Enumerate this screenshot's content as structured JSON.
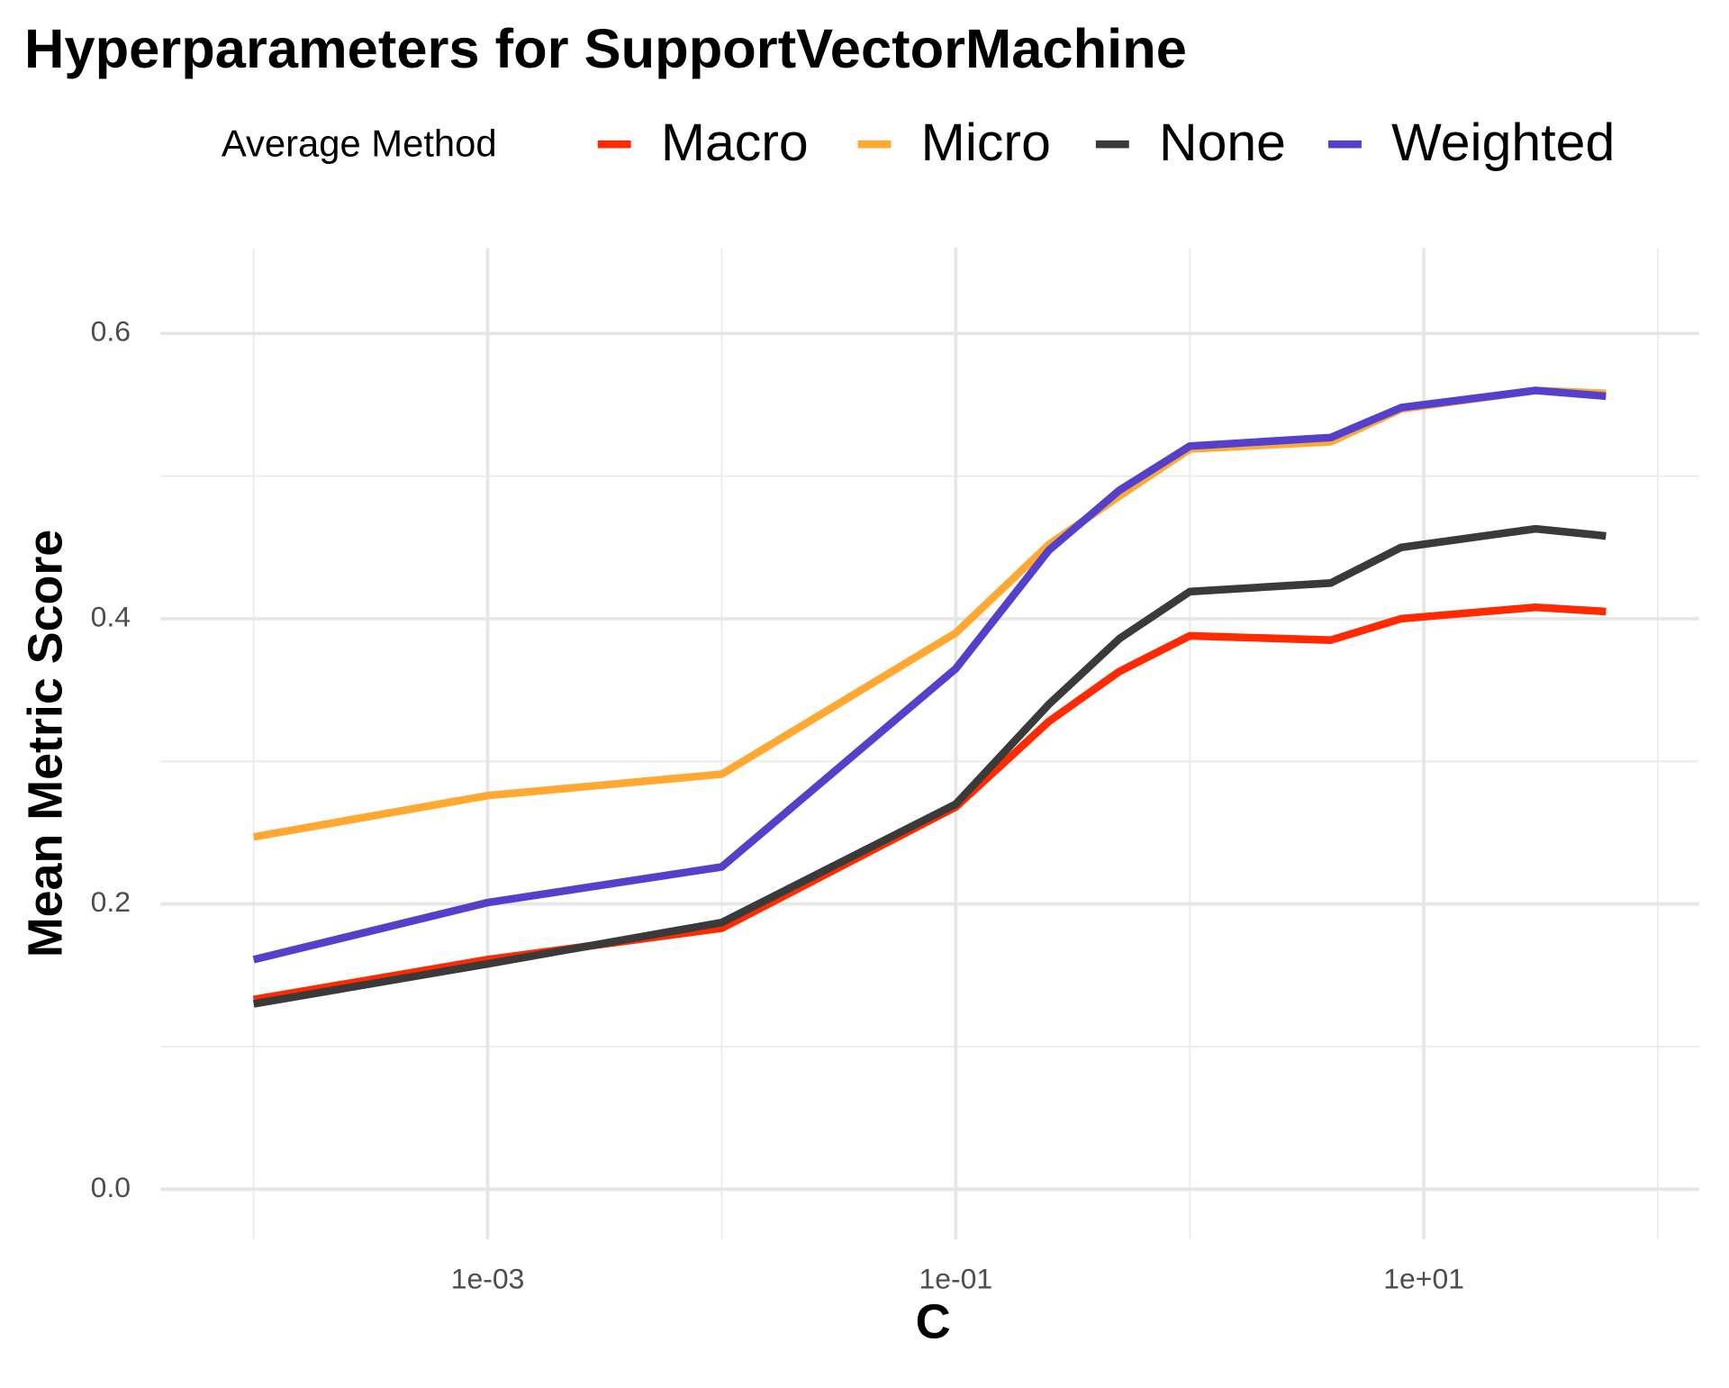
{
  "chart_data": {
    "type": "line",
    "title": "Hyperparameters for SupportVectorMachine",
    "x_label": "C",
    "y_label": "Mean Metric Score",
    "legend_title": "Average Method",
    "legend_position": "top",
    "x_scale": "log",
    "x": [
      0.0001,
      0.001,
      0.01,
      0.1,
      0.25,
      0.5,
      1,
      4,
      8,
      30,
      60
    ],
    "series": [
      {
        "name": "Macro",
        "color": "#ff2a00",
        "values": [
          0.133,
          0.161,
          0.183,
          0.268,
          0.328,
          0.363,
          0.388,
          0.385,
          0.4,
          0.408,
          0.405
        ]
      },
      {
        "name": "Micro",
        "color": "#ffa832",
        "values": [
          0.247,
          0.276,
          0.291,
          0.39,
          0.452,
          0.486,
          0.519,
          0.524,
          0.547,
          0.56,
          0.558
        ]
      },
      {
        "name": "None",
        "color": "#3a3a3a",
        "values": [
          0.13,
          0.158,
          0.187,
          0.27,
          0.34,
          0.386,
          0.419,
          0.425,
          0.45,
          0.463,
          0.458
        ]
      },
      {
        "name": "Weighted",
        "color": "#5540cc",
        "values": [
          0.161,
          0.201,
          0.226,
          0.365,
          0.448,
          0.49,
          0.521,
          0.527,
          0.548,
          0.56,
          0.556
        ]
      }
    ],
    "xlim": [
      4e-05,
      150
    ],
    "xticks": [
      {
        "value": 0.001,
        "label": "1e-03"
      },
      {
        "value": 0.1,
        "label": "1e-01"
      },
      {
        "value": 10,
        "label": "1e+01"
      }
    ],
    "x_minor_grid": [
      0.0001,
      0.01,
      1,
      100
    ],
    "ylim": [
      -0.035,
      0.66
    ],
    "yticks": [
      {
        "value": 0,
        "label": "0.0"
      },
      0.2,
      0.4,
      0.6
    ],
    "y_minor_grid": [
      0.1,
      0.3,
      0.5
    ],
    "grid": true
  }
}
